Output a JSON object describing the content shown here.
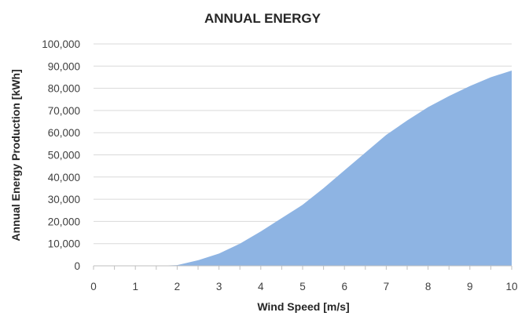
{
  "chart_data": {
    "type": "area",
    "title": "ANNUAL ENERGY",
    "xlabel": "Wind Speed [m/s]",
    "ylabel": "Annual Energy Production [kWh]",
    "xlim": [
      0,
      10
    ],
    "ylim": [
      0,
      100000
    ],
    "x_ticks": [
      "0",
      "1",
      "2",
      "3",
      "4",
      "5",
      "6",
      "7",
      "8",
      "9",
      "10"
    ],
    "y_ticks": [
      "0",
      "10,000",
      "20,000",
      "30,000",
      "40,000",
      "50,000",
      "60,000",
      "70,000",
      "80,000",
      "90,000",
      "100,000"
    ],
    "grid": true,
    "fill_color": "#8eb4e3",
    "series": [
      {
        "x": [
          0,
          0.5,
          1,
          1.5,
          2,
          2.5,
          3,
          3.5,
          4,
          4.5,
          5,
          5.5,
          6,
          6.5,
          7,
          7.5,
          8,
          8.5,
          9,
          9.5,
          10
        ],
        "values": [
          0,
          0,
          0,
          0,
          300,
          2500,
          5500,
          10000,
          15500,
          21500,
          27500,
          35000,
          43000,
          51000,
          59000,
          65500,
          71500,
          76500,
          81000,
          85000,
          88000
        ]
      }
    ]
  }
}
